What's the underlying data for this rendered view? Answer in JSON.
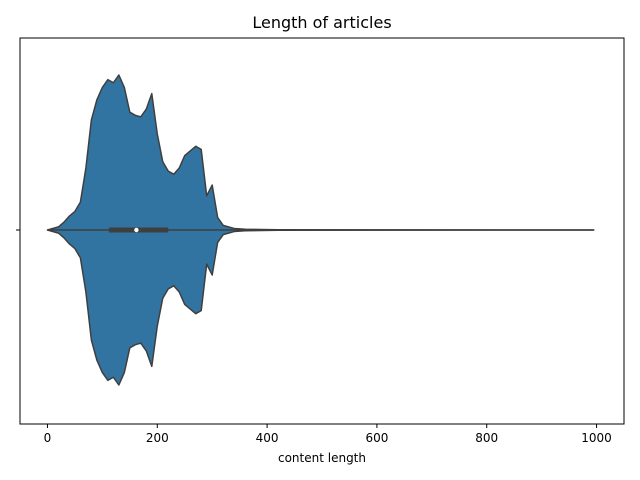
{
  "chart_data": {
    "type": "violin",
    "title": "Length of articles",
    "xlabel": "content length",
    "ylabel": "",
    "xlim": [
      -50,
      1050
    ],
    "xticks": [
      0,
      200,
      400,
      600,
      800,
      1000
    ],
    "grid": false,
    "legend": "none",
    "colors": {
      "body": "#3274a1",
      "edge": "#3f3f3f",
      "median": "#ffffff"
    },
    "violin": {
      "min": 0,
      "max": 995,
      "q1": 112,
      "median": 162,
      "q3": 220,
      "density": [
        [
          0,
          0.0
        ],
        [
          20,
          0.02
        ],
        [
          30,
          0.05
        ],
        [
          40,
          0.09
        ],
        [
          50,
          0.12
        ],
        [
          60,
          0.18
        ],
        [
          70,
          0.4
        ],
        [
          80,
          0.71
        ],
        [
          90,
          0.84
        ],
        [
          100,
          0.92
        ],
        [
          110,
          0.97
        ],
        [
          120,
          0.95
        ],
        [
          130,
          1.0
        ],
        [
          140,
          0.92
        ],
        [
          150,
          0.76
        ],
        [
          160,
          0.74
        ],
        [
          170,
          0.73
        ],
        [
          180,
          0.78
        ],
        [
          190,
          0.88
        ],
        [
          200,
          0.62
        ],
        [
          210,
          0.44
        ],
        [
          220,
          0.38
        ],
        [
          230,
          0.36
        ],
        [
          240,
          0.4
        ],
        [
          250,
          0.48
        ],
        [
          270,
          0.54
        ],
        [
          280,
          0.52
        ],
        [
          290,
          0.22
        ],
        [
          300,
          0.29
        ],
        [
          310,
          0.08
        ],
        [
          320,
          0.03
        ],
        [
          340,
          0.01
        ],
        [
          360,
          0.005
        ],
        [
          420,
          0.002
        ],
        [
          600,
          0.0005
        ],
        [
          995,
          0.0
        ]
      ]
    }
  }
}
